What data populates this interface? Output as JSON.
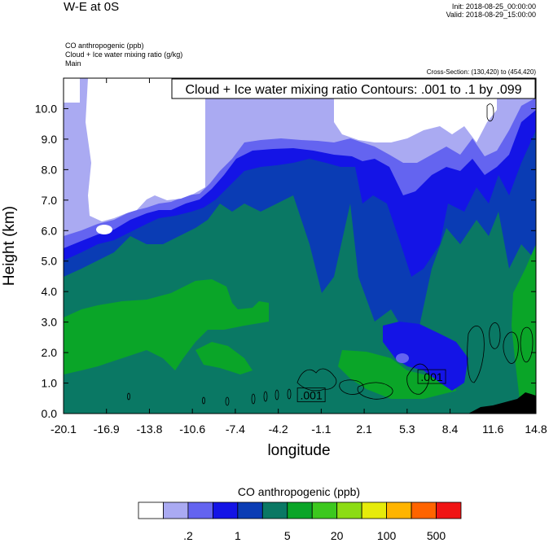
{
  "header": {
    "title": "W-E at 0S",
    "init": "Init: 2018-08-25_00:00:00",
    "valid": "Valid: 2018-08-29_15:00:00",
    "fields": [
      "CO anthropogenic   (ppb)",
      "Cloud + Ice water mixing ratio   (g/kg)",
      "Main"
    ],
    "cross_section": "Cross-Section: (130,420) to (454,420)"
  },
  "chart_data": {
    "type": "heatmap",
    "title": "Cloud + Ice water mixing ratio Contours: .001 to .1 by .099",
    "xlabel": "longitude",
    "ylabel": "Height (km)",
    "xlim": [
      -20.1,
      14.8
    ],
    "ylim": [
      0.0,
      11.0
    ],
    "x_ticks": [
      "-20.1",
      "-16.9",
      "-13.8",
      "-10.6",
      "-7.4",
      "-4.2",
      "-1.1",
      "2.1",
      "5.3",
      "8.4",
      "11.6",
      "14.8"
    ],
    "y_ticks": [
      "0.0",
      "1.0",
      "2.0",
      "3.0",
      "4.0",
      "5.0",
      "6.0",
      "7.0",
      "8.0",
      "9.0",
      "10.0"
    ],
    "contour_labels": [
      {
        "text": ".001",
        "x": -1.8,
        "y": 0.6
      },
      {
        "text": ".001",
        "x": 7.1,
        "y": 1.2
      }
    ],
    "colorbar": {
      "title": "CO anthropogenic  (ppb)",
      "colors": [
        "#ffffff",
        "#aaaaf2",
        "#6464f0",
        "#1414e6",
        "#0a3cb4",
        "#0a7864",
        "#0aa528",
        "#3cc81e",
        "#8cdc14",
        "#e6eb0a",
        "#ffb400",
        "#ff6400",
        "#f01414"
      ],
      "labels": [
        ".2",
        "1",
        "5",
        "20",
        "100",
        "500"
      ]
    }
  }
}
